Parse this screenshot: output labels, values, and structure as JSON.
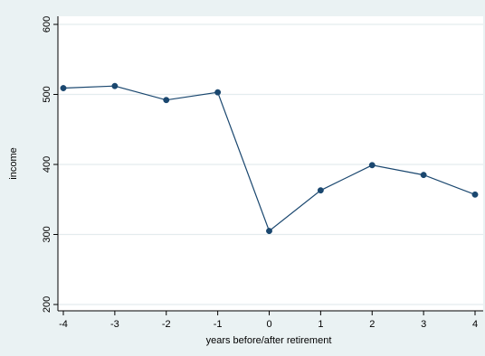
{
  "chart_data": {
    "type": "line",
    "title": "",
    "xlabel": "years before/after retirement",
    "ylabel": "income",
    "x": [
      -4,
      -3,
      -2,
      -1,
      0,
      1,
      2,
      3,
      4
    ],
    "series": [
      {
        "values": [
          509,
          512,
          492,
          503,
          305,
          363,
          399,
          385,
          357
        ]
      }
    ],
    "xlim": [
      -4,
      4
    ],
    "ylim": [
      200,
      600
    ],
    "x_ticks": [
      "-4",
      "-3",
      "-2",
      "-1",
      "0",
      "1",
      "2",
      "3",
      "4"
    ],
    "y_ticks": [
      "200",
      "300",
      "400",
      "500",
      "600"
    ],
    "grid": "horizontal",
    "legend": "none",
    "colors": {
      "outer_background": "#eaf2f3",
      "plot_background": "#ffffff",
      "grid": "#e4ecee",
      "series": "#1a476f",
      "axis": "#000000"
    }
  }
}
